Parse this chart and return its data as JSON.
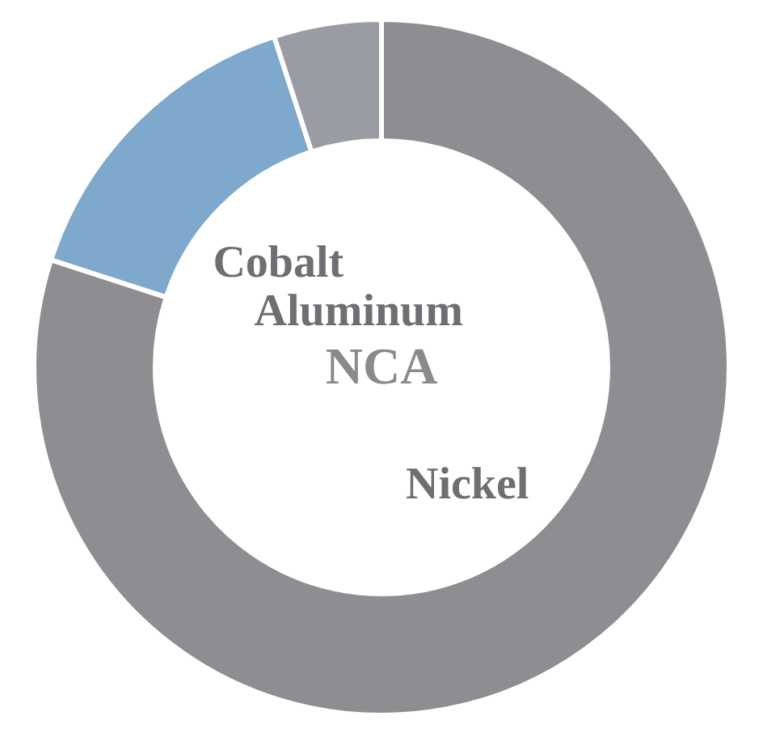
{
  "chart_data": {
    "type": "donut",
    "title": "NCA",
    "categories": [
      "Nickel",
      "Cobalt",
      "Aluminum"
    ],
    "values": [
      80,
      15,
      5
    ],
    "colors": [
      "#8e8e92",
      "#7ea8cc",
      "#9a9ca4"
    ],
    "legend": false
  }
}
